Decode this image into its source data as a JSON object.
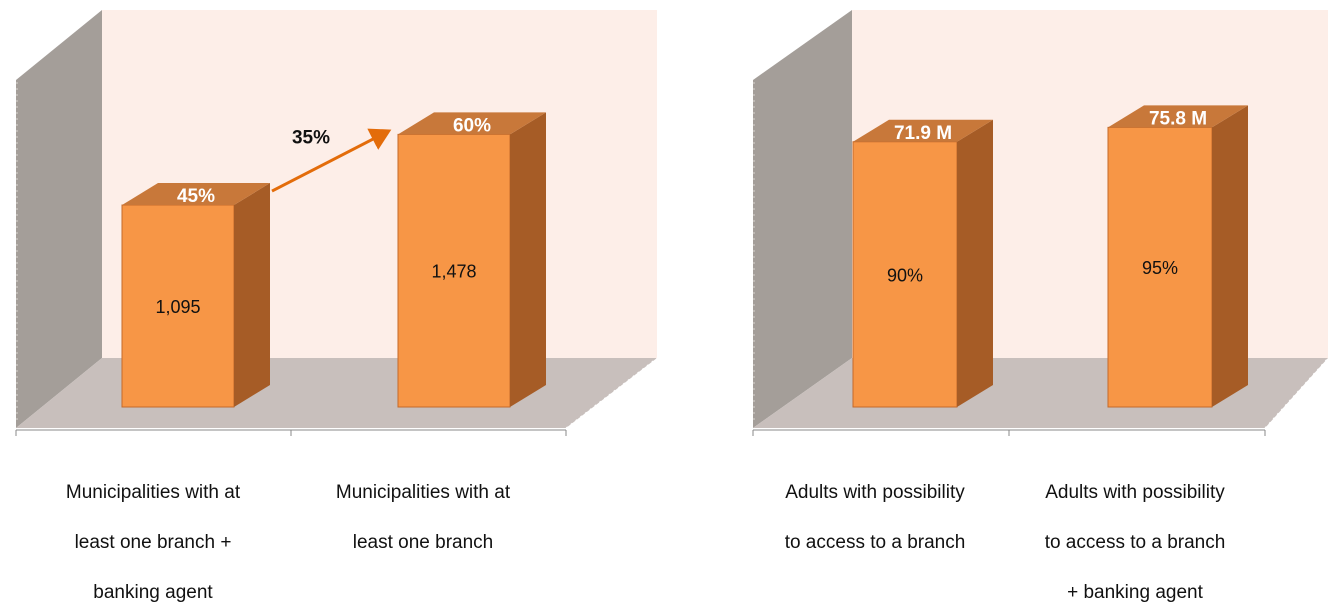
{
  "chart_data": [
    {
      "type": "bar",
      "style": "3d-column",
      "categories": [
        "Municipalities with at least one branch + banking agent",
        "Municipalities with at least one branch"
      ],
      "category_labels": [
        [
          "Municipalities with at",
          "least one branch +",
          "banking agent"
        ],
        [
          "Municipalities with at",
          "least one branch"
        ]
      ],
      "values": [
        1095,
        1478
      ],
      "value_labels": [
        "1,095",
        "1,478"
      ],
      "top_labels": [
        "45%",
        "60%"
      ],
      "percent_values": [
        45,
        60
      ],
      "annotation": {
        "text": "35%",
        "type": "arrow",
        "from": 0,
        "to": 1
      },
      "grid": false
    },
    {
      "type": "bar",
      "style": "3d-column",
      "categories": [
        "Adults with possibility to access to a branch",
        "Adults with possibility to access to a branch + banking agent"
      ],
      "category_labels": [
        [
          "Adults with possibility",
          "to access to a branch"
        ],
        [
          "Adults with possibility",
          "to access to a branch",
          "+ banking agent"
        ]
      ],
      "values": [
        71.9,
        75.8
      ],
      "top_labels": [
        "71.9 M",
        "75.8 M"
      ],
      "value_labels": [
        "90%",
        "95%"
      ],
      "percent_values": [
        90,
        95
      ],
      "grid": false
    }
  ],
  "colors": {
    "bar_front": "#f79646",
    "bar_side": "#a65c26",
    "bar_top": "#c8783a",
    "bar_outline": "#c4692a",
    "back_wall": "#fdeee8",
    "side_wall": "#a49e99",
    "floor": "#c8bfbc",
    "arrow": "#e36c0a",
    "axis": "#888888"
  }
}
